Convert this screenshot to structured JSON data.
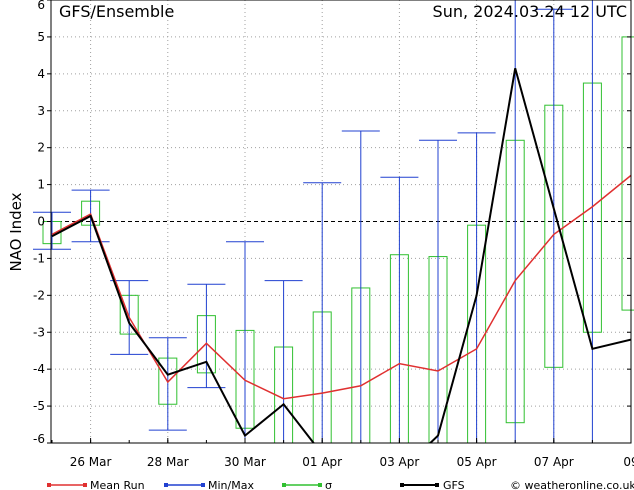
{
  "header": {
    "title": "GFS/Ensemble",
    "run_time": "Sun, 2024.03.24  12 UTC"
  },
  "legend": {
    "mean_run": "Mean Run",
    "min_max": "Min/Max",
    "sigma": "σ",
    "gfs": "GFS",
    "credit": "© weatheronline.co.uk"
  },
  "colors": {
    "mean": "#e03030",
    "minmax": "#2040d0",
    "sigma": "#30c030",
    "gfs": "#000000",
    "grid": "#a0a0a0",
    "zero": "#000000"
  },
  "chart_data": {
    "type": "line",
    "ylabel": "NAO Index",
    "ylim": [
      -6,
      6
    ],
    "yticks": [
      -6,
      -5,
      -4,
      -3,
      -2,
      -1,
      0,
      1,
      2,
      3,
      4,
      5,
      6
    ],
    "xlim": [
      0,
      15
    ],
    "x_ticks": [
      {
        "x": 1,
        "label": "26 Mar"
      },
      {
        "x": 3,
        "label": "28 Mar"
      },
      {
        "x": 5,
        "label": "30 Mar"
      },
      {
        "x": 7,
        "label": "01 Apr"
      },
      {
        "x": 9,
        "label": "03 Apr"
      },
      {
        "x": 11,
        "label": "05 Apr"
      },
      {
        "x": 13,
        "label": "07 Apr"
      },
      {
        "x": 15,
        "label": "09"
      }
    ],
    "x": [
      0,
      1,
      2,
      3,
      4,
      5,
      6,
      7,
      8,
      9,
      10,
      11,
      12,
      13,
      14,
      15
    ],
    "mean": [
      -0.35,
      0.2,
      -2.6,
      -4.35,
      -3.3,
      -4.3,
      -4.8,
      -4.65,
      -4.45,
      -3.85,
      -4.05,
      -3.45,
      -1.6,
      -0.35,
      0.4,
      1.25
    ],
    "gfs": [
      -0.4,
      0.15,
      -2.75,
      -4.15,
      -3.8,
      -5.8,
      -4.95,
      -6.3,
      -6.8,
      -6.8,
      -5.8,
      -2.0,
      4.15,
      0.35,
      -3.45,
      -3.2
    ],
    "sigma": [
      {
        "x": 0,
        "low": -0.6,
        "high": 0.0
      },
      {
        "x": 1,
        "low": -0.1,
        "high": 0.55
      },
      {
        "x": 2,
        "low": -3.05,
        "high": -2.0
      },
      {
        "x": 3,
        "low": -4.95,
        "high": -3.7
      },
      {
        "x": 4,
        "low": -4.1,
        "high": -2.55
      },
      {
        "x": 5,
        "low": -5.6,
        "high": -2.95
      },
      {
        "x": 6,
        "low": -6.2,
        "high": -3.4
      },
      {
        "x": 7,
        "low": -6.2,
        "high": -2.45
      },
      {
        "x": 8,
        "low": -6.2,
        "high": -1.8
      },
      {
        "x": 9,
        "low": -6.2,
        "high": -0.9
      },
      {
        "x": 10,
        "low": -6.2,
        "high": -0.95
      },
      {
        "x": 11,
        "low": -6.2,
        "high": -0.1
      },
      {
        "x": 12,
        "low": -5.45,
        "high": 2.2
      },
      {
        "x": 13,
        "low": -3.95,
        "high": 3.15
      },
      {
        "x": 14,
        "low": -3.0,
        "high": 3.75
      },
      {
        "x": 15,
        "low": -2.4,
        "high": 5.0
      }
    ],
    "minmax": [
      {
        "x": 0,
        "min": -0.75,
        "max": 0.25
      },
      {
        "x": 1,
        "min": -0.55,
        "max": 0.85
      },
      {
        "x": 2,
        "min": -3.6,
        "max": -1.6
      },
      {
        "x": 3,
        "min": -5.65,
        "max": -3.15
      },
      {
        "x": 4,
        "min": -4.5,
        "max": -1.7
      },
      {
        "x": 5,
        "min": -6.2,
        "max": -0.55
      },
      {
        "x": 6,
        "min": -6.2,
        "max": -1.6
      },
      {
        "x": 7,
        "min": -6.2,
        "max": 1.05
      },
      {
        "x": 8,
        "min": -6.2,
        "max": 2.45
      },
      {
        "x": 9,
        "min": -6.2,
        "max": 1.2
      },
      {
        "x": 10,
        "min": -6.2,
        "max": 2.2
      },
      {
        "x": 11,
        "min": -6.2,
        "max": 2.4
      },
      {
        "x": 12,
        "min": -6.2,
        "max": 6.0
      },
      {
        "x": 13,
        "min": -6.2,
        "max": 5.75
      },
      {
        "x": 14,
        "min": -6.2,
        "max": 6.0
      },
      {
        "x": 15,
        "min": -6.2,
        "max": 6.0
      }
    ],
    "grid": true,
    "legend_position": "bottom"
  }
}
